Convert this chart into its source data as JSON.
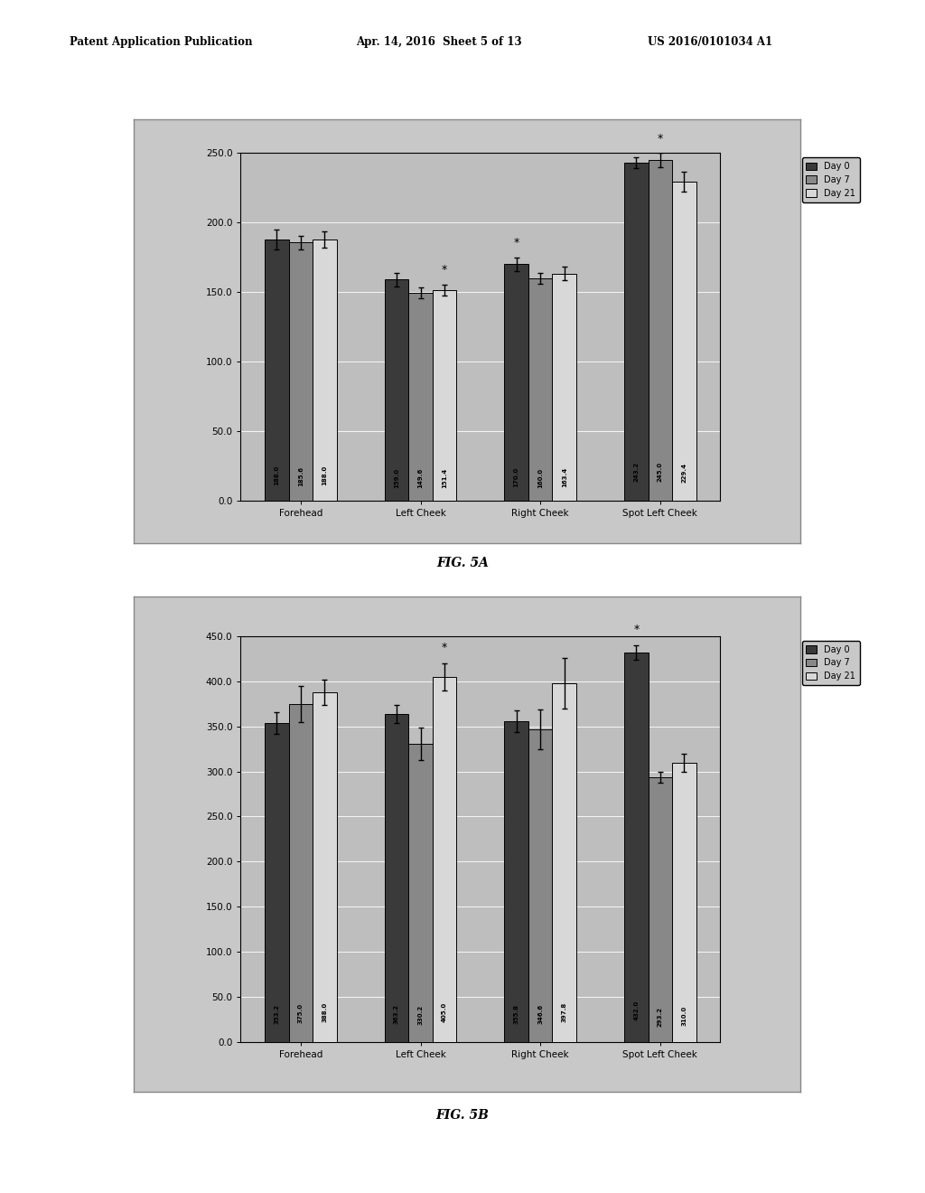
{
  "fig5a": {
    "categories": [
      "Forehead",
      "Left Cheek",
      "Right Cheek",
      "Spot Left Cheek"
    ],
    "day0": [
      188.0,
      159.0,
      170.0,
      243.2
    ],
    "day7": [
      185.6,
      149.6,
      160.0,
      245.0
    ],
    "day21": [
      188.0,
      151.4,
      163.4,
      229.4
    ],
    "day0_err": [
      7.0,
      5.0,
      5.0,
      4.0
    ],
    "day7_err": [
      5.0,
      4.0,
      4.0,
      5.0
    ],
    "day21_err": [
      6.0,
      4.0,
      5.0,
      7.0
    ],
    "ylim": [
      0.0,
      250.0
    ],
    "yticks": [
      0.0,
      50.0,
      100.0,
      150.0,
      200.0,
      250.0
    ],
    "asterisk_groups": [
      1,
      2,
      3
    ],
    "asterisk_which": [
      2,
      0,
      1
    ]
  },
  "fig5b": {
    "categories": [
      "Forehead",
      "Left Cheek",
      "Right Cheek",
      "Spot Left Cheek"
    ],
    "day0": [
      353.2,
      363.2,
      355.8,
      432.0
    ],
    "day7": [
      375.0,
      330.2,
      346.6,
      293.2
    ],
    "day21": [
      388.0,
      405.0,
      397.8,
      310.0
    ],
    "day0_err": [
      12.0,
      10.0,
      12.0,
      8.0
    ],
    "day7_err": [
      20.0,
      18.0,
      22.0,
      6.0
    ],
    "day21_err": [
      14.0,
      15.0,
      28.0,
      10.0
    ],
    "ylim": [
      0.0,
      450.0
    ],
    "yticks": [
      0.0,
      50.0,
      100.0,
      150.0,
      200.0,
      250.0,
      300.0,
      350.0,
      400.0,
      450.0
    ],
    "asterisk_groups": [
      1,
      3
    ],
    "asterisk_which": [
      2,
      0
    ]
  },
  "colors": {
    "day0": "#3a3a3a",
    "day7": "#888888",
    "day21": "#d8d8d8"
  },
  "bar_width": 0.2,
  "legend_labels": [
    "Day 0",
    "Day 7",
    "Day 21"
  ],
  "bg_outer": "#ffffff",
  "bg_frame": "#c8c8c8",
  "bg_plot": "#bebebe",
  "header_left": "Patent Application Publication",
  "header_mid": "Apr. 14, 2016  Sheet 5 of 13",
  "header_right": "US 2016/0101034 A1",
  "label_5a": "FIG. 5A",
  "label_5b": "FIG. 5B"
}
